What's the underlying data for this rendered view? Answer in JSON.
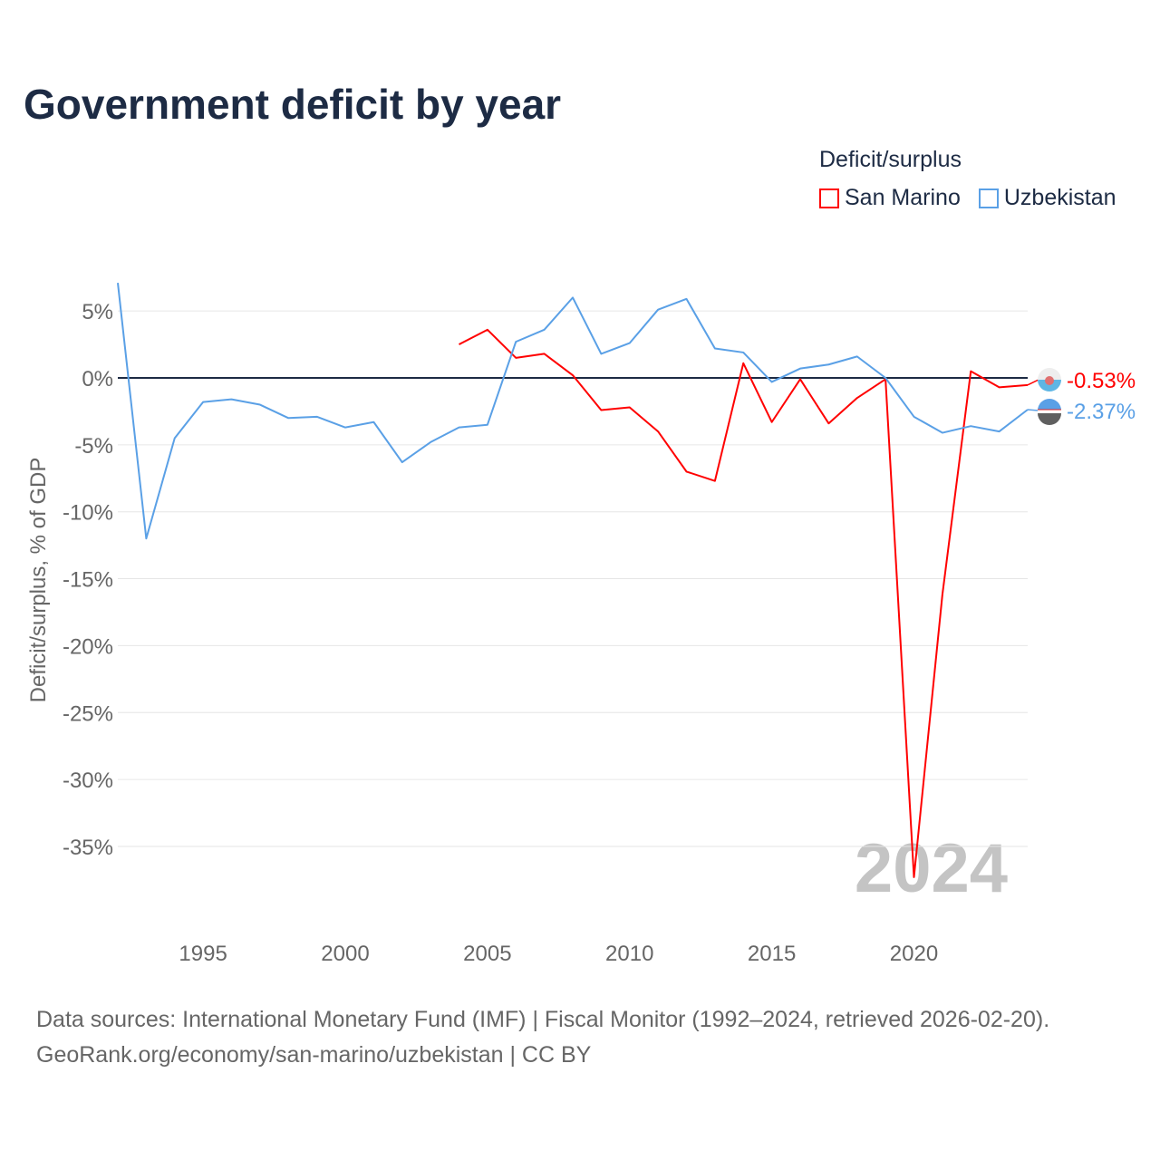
{
  "title": "Government deficit by year",
  "legend": {
    "title": "Deficit/surplus",
    "items": [
      {
        "label": "San Marino",
        "color": "#ff0000"
      },
      {
        "label": "Uzbekistan",
        "color": "#5aa0e6"
      }
    ]
  },
  "watermark_year": "2024",
  "source": {
    "line1": "Data sources: International Monetary Fund (IMF) | Fiscal Monitor (1992–2024, retrieved 2026-02-20).",
    "line2": "GeoRank.org/economy/san-marino/uzbekistan | CC BY"
  },
  "chart_data": {
    "type": "line",
    "title": "Government deficit by year",
    "xlabel": "",
    "ylabel": "Deficit/surplus, % of GDP",
    "xlim": [
      1992,
      2024
    ],
    "ylim": [
      -40,
      7.5
    ],
    "x_ticks": [
      1995,
      2000,
      2005,
      2010,
      2015,
      2020
    ],
    "y_ticks": [
      5,
      0,
      -5,
      -10,
      -15,
      -20,
      -25,
      -30,
      -35
    ],
    "y_tick_labels": [
      "5%",
      "0%",
      "-5%",
      "-10%",
      "-15%",
      "-20%",
      "-25%",
      "-30%",
      "-35%"
    ],
    "grid": true,
    "legend_position": "top-right",
    "series": [
      {
        "name": "San Marino",
        "color": "#ff0000",
        "end_label": "-0.53%",
        "x": [
          2004,
          2005,
          2006,
          2007,
          2008,
          2009,
          2010,
          2011,
          2012,
          2013,
          2014,
          2015,
          2016,
          2017,
          2018,
          2019,
          2020,
          2021,
          2022,
          2023,
          2024
        ],
        "values": [
          2.5,
          3.6,
          1.5,
          1.8,
          0.2,
          -2.4,
          -2.2,
          -4.0,
          -7.0,
          -7.7,
          1.1,
          -3.3,
          -0.1,
          -3.4,
          -1.5,
          -0.1,
          -37.3,
          -16.2,
          0.5,
          -0.7,
          -0.53
        ]
      },
      {
        "name": "Uzbekistan",
        "color": "#5aa0e6",
        "end_label": "-2.37%",
        "x": [
          1992,
          1993,
          1994,
          1995,
          1996,
          1997,
          1998,
          1999,
          2000,
          2001,
          2002,
          2003,
          2004,
          2005,
          2006,
          2007,
          2008,
          2009,
          2010,
          2011,
          2012,
          2013,
          2014,
          2015,
          2016,
          2017,
          2018,
          2019,
          2020,
          2021,
          2022,
          2023,
          2024
        ],
        "values": [
          7.1,
          -12.0,
          -4.5,
          -1.8,
          -1.6,
          -2.0,
          -3.0,
          -2.9,
          -3.7,
          -3.3,
          -6.3,
          -4.8,
          -3.7,
          -3.5,
          2.7,
          3.6,
          6.0,
          1.8,
          2.6,
          5.1,
          5.9,
          2.2,
          1.9,
          -0.3,
          0.7,
          1.0,
          1.6,
          0.0,
          -2.9,
          -4.1,
          -3.6,
          -4.0,
          -2.37
        ]
      }
    ]
  }
}
